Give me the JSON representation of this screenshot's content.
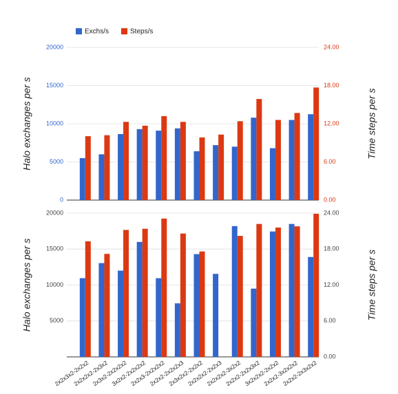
{
  "chart_data": [
    {
      "type": "bar",
      "y_label": "Halo exchanges per s",
      "y2_label": "Time steps per s",
      "legend": "top-left",
      "ylim": [
        0,
        20000
      ],
      "yticks": [
        0,
        5000,
        10000,
        15000,
        20000
      ],
      "y2lim": [
        0,
        24
      ],
      "y2ticks": [
        {
          "value": 0,
          "label": "0.00"
        },
        {
          "value": 6,
          "label": "6.00"
        },
        {
          "value": 12,
          "label": "12.00"
        },
        {
          "value": 18,
          "label": "18.00"
        },
        {
          "value": 24,
          "label": "24.00"
        }
      ],
      "grid": true,
      "series": [
        {
          "name": "Exchs/s",
          "color": "#3366cc",
          "values": [
            5500,
            6000,
            8650,
            9300,
            9100,
            9400,
            6400,
            7200,
            7000,
            10800,
            6800,
            10500,
            11250
          ]
        },
        {
          "name": "Steps/s",
          "color": "#dc3912",
          "axis": "y2",
          "values": [
            10.05,
            10.2,
            12.3,
            11.7,
            13.2,
            12.3,
            9.85,
            10.3,
            12.4,
            15.9,
            12.6,
            13.7,
            17.7
          ]
        }
      ]
    },
    {
      "type": "bar",
      "y_label": "Halo exchanges per s",
      "y2_label": "Time steps per s",
      "categories": [
        "2x2x3x2-2x2x2",
        "2x2x2x2-2x3x2",
        "2x3x2-2x2x2x2",
        "3x2x2-2x2x2x2",
        "2x2x3-2x2x2x2",
        "2x2x2-2x2x2x3",
        "2x3x2x2-2x2x2",
        "2x2x2x2-2x2x3",
        "2x2x2x2-3x2x2",
        "2x2x2-2x2x3x2",
        "3x2x2x2-2x2x2",
        "2x2x2-3x2x2x2",
        "2x2x2-2x3x2x2"
      ],
      "ylim": [
        0,
        20000
      ],
      "yticks": [
        5000,
        10000,
        15000,
        20000
      ],
      "y2lim": [
        0,
        24
      ],
      "y2ticks": [
        {
          "value": 0,
          "label": "0.00"
        },
        {
          "value": 6,
          "label": "6.00"
        },
        {
          "value": 12,
          "label": "12.00"
        },
        {
          "value": 18,
          "label": "18.00"
        },
        {
          "value": 24,
          "label": "24.00"
        }
      ],
      "grid": true,
      "series": [
        {
          "name": "Exchs/s",
          "color": "#3366cc",
          "values": [
            10950,
            13050,
            12000,
            16000,
            10950,
            7450,
            14300,
            11550,
            18200,
            9500,
            17450,
            18500,
            13900
          ]
        },
        {
          "name": "Steps/s",
          "color": "#dc3912",
          "axis": "y2",
          "values": [
            19.3,
            17.2,
            21.2,
            21.4,
            23.1,
            20.6,
            17.6,
            null,
            20.2,
            22.2,
            21.6,
            21.8,
            23.9
          ]
        }
      ]
    }
  ]
}
